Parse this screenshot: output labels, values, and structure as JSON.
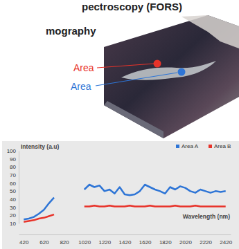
{
  "header": {
    "title": "pectroscopy (FORS)",
    "subtitle": "mography"
  },
  "image_labels": [
    {
      "text": "Area"
    },
    {
      "text": "Area"
    }
  ],
  "chart_data": {
    "type": "line",
    "y_label": "Intensity (a.u)",
    "x_label": "Wavelength (nm)",
    "x": [
      420,
      470,
      520,
      570,
      620,
      670,
      720,
      770,
      820,
      870,
      920,
      970,
      1020,
      1070,
      1120,
      1170,
      1220,
      1270,
      1320,
      1370,
      1420,
      1470,
      1520,
      1570,
      1620,
      1670,
      1720,
      1770,
      1820,
      1870,
      1920,
      1970,
      2020,
      2070,
      2120,
      2170,
      2220,
      2270,
      2320,
      2370,
      2420
    ],
    "series": [
      {
        "name": "Area A",
        "color": "#2e75d6",
        "values": [
          15,
          16,
          18,
          22,
          27,
          35,
          42,
          null,
          null,
          null,
          null,
          null,
          52,
          58,
          55,
          57,
          50,
          52,
          47,
          55,
          46,
          45,
          46,
          50,
          58,
          55,
          52,
          50,
          47,
          55,
          52,
          56,
          54,
          50,
          48,
          52,
          50,
          48,
          50,
          49,
          50
        ]
      },
      {
        "name": "Area B",
        "color": "#e8332a",
        "values": [
          12,
          13,
          14,
          16,
          17,
          19,
          21,
          null,
          null,
          null,
          null,
          null,
          31,
          31,
          32,
          31,
          31,
          32,
          31,
          31,
          31,
          32,
          31,
          31,
          31,
          32,
          31,
          31,
          31,
          31,
          32,
          31,
          31,
          31,
          32,
          31,
          31,
          31,
          31,
          31,
          31
        ]
      }
    ],
    "xlim": [
      370,
      2470
    ],
    "xticks": [
      420,
      620,
      820,
      1020,
      1220,
      1420,
      1620,
      1820,
      2020,
      2220,
      2420
    ],
    "ylim": [
      10,
      100
    ],
    "yticks": [
      10,
      20,
      30,
      40,
      50,
      60,
      70,
      80,
      90,
      100
    ],
    "grid": false,
    "legend": "top-right"
  }
}
